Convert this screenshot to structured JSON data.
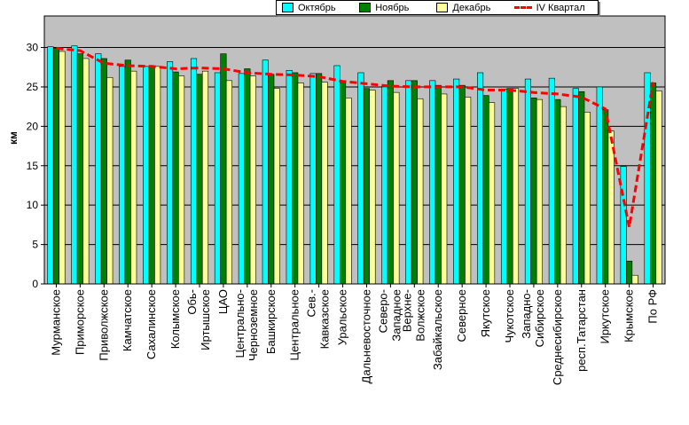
{
  "chart_data": {
    "type": "bar",
    "title": "",
    "xlabel": "",
    "ylabel": "км",
    "ylim": [
      0,
      34
    ],
    "yticks": [
      0,
      5,
      10,
      15,
      20,
      25,
      30
    ],
    "grid": true,
    "legend_position": "top",
    "categories": [
      "Мурманское",
      "Приморское",
      "Приволжское",
      "Камчатское",
      "Сахалинское",
      "Колымское",
      "Обь-Иртышское",
      "ЦАО",
      "Центрально-Черноземное",
      "Башкирское",
      "Центральное",
      "Сев.-Кавказское",
      "Уральское",
      "Дальневосточное",
      "Северо-Западное",
      "Верхне-Волжское",
      "Забайкальское",
      "Северное",
      "Якутское",
      "Чукотское",
      "Западно-Сибирское",
      "Среднесибирское",
      "респ.Татарстан",
      "Иркутское",
      "Крымское",
      "По РФ"
    ],
    "series": [
      {
        "name": "Октябрь",
        "color": "#00ffff",
        "values": [
          30.1,
          30.2,
          29.2,
          27.6,
          27.6,
          28.2,
          28.6,
          26.8,
          26.7,
          28.4,
          27.1,
          26.7,
          27.7,
          26.8,
          25.0,
          25.8,
          25.8,
          26.0,
          26.8,
          24.7,
          26.0,
          26.1,
          24.8,
          25.0,
          14.9,
          26.8
        ]
      },
      {
        "name": "Ноябрь",
        "color": "#008000",
        "values": [
          29.9,
          29.2,
          28.6,
          28.4,
          27.6,
          26.9,
          26.6,
          29.2,
          27.3,
          26.6,
          26.8,
          26.7,
          25.7,
          24.8,
          25.8,
          25.8,
          25.2,
          25.2,
          23.9,
          24.8,
          23.6,
          23.4,
          24.4,
          22.1,
          2.9,
          25.5
        ]
      },
      {
        "name": "Декабрь",
        "color": "#ffff99",
        "values": [
          29.5,
          28.6,
          26.2,
          27.0,
          27.6,
          26.4,
          27.0,
          25.8,
          26.4,
          24.8,
          25.5,
          25.6,
          23.6,
          24.6,
          24.3,
          23.5,
          24.1,
          23.7,
          23.0,
          24.8,
          23.4,
          22.5,
          21.8,
          19.4,
          1.1,
          24.5
        ]
      },
      {
        "name": "IV Квартал",
        "color": "#ff0000",
        "values": [
          29.9,
          29.6,
          28.0,
          27.7,
          27.6,
          27.3,
          27.4,
          27.3,
          26.8,
          26.6,
          26.5,
          26.3,
          25.7,
          25.4,
          25.1,
          25.0,
          25.0,
          25.0,
          24.6,
          24.6,
          24.3,
          24.1,
          23.7,
          22.2,
          7.2,
          25.6
        ]
      }
    ]
  }
}
